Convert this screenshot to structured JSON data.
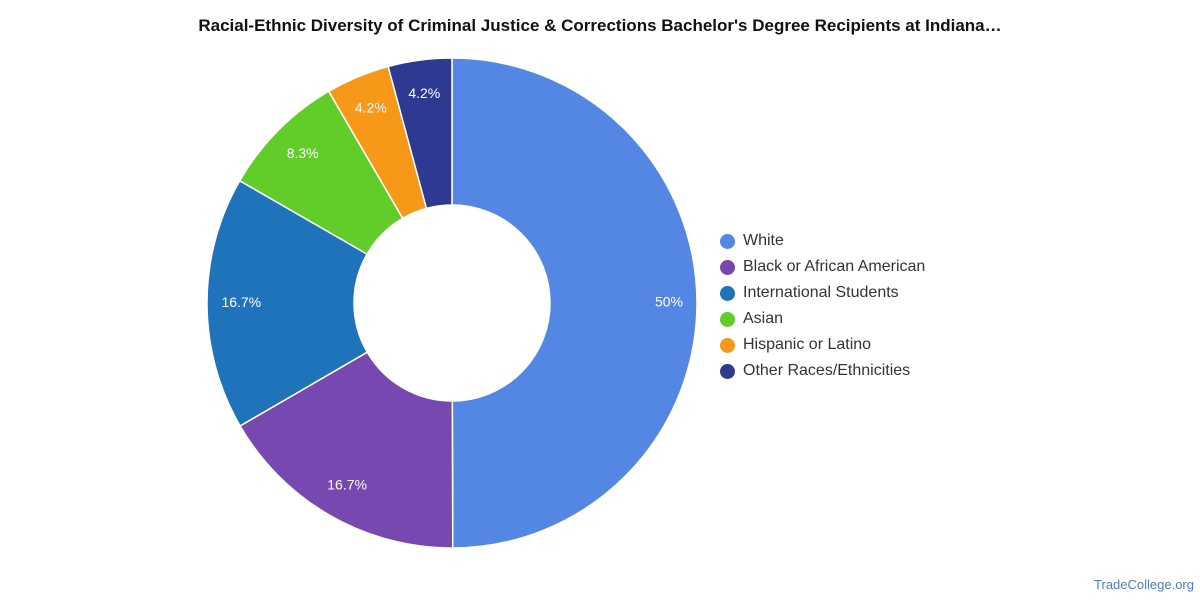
{
  "chart_data": {
    "type": "pie",
    "title": "Racial-Ethnic Diversity of Criminal Justice & Corrections Bachelor's Degree Recipients at Indiana…",
    "categories": [
      "White",
      "Black or African American",
      "International Students",
      "Asian",
      "Hispanic or Latino",
      "Other Races/Ethnicities"
    ],
    "values": [
      50,
      16.7,
      16.7,
      8.3,
      4.2,
      4.2
    ],
    "value_labels": [
      "50%",
      "16.7%",
      "16.7%",
      "8.3%",
      "4.2%",
      "4.2%"
    ],
    "colors": [
      "#5486e3",
      "#7749b0",
      "#1f73bb",
      "#62cc2b",
      "#f89819",
      "#2e3a91"
    ],
    "donut": true,
    "legend_position": "right"
  },
  "footer": {
    "source": "TradeCollege.org"
  }
}
